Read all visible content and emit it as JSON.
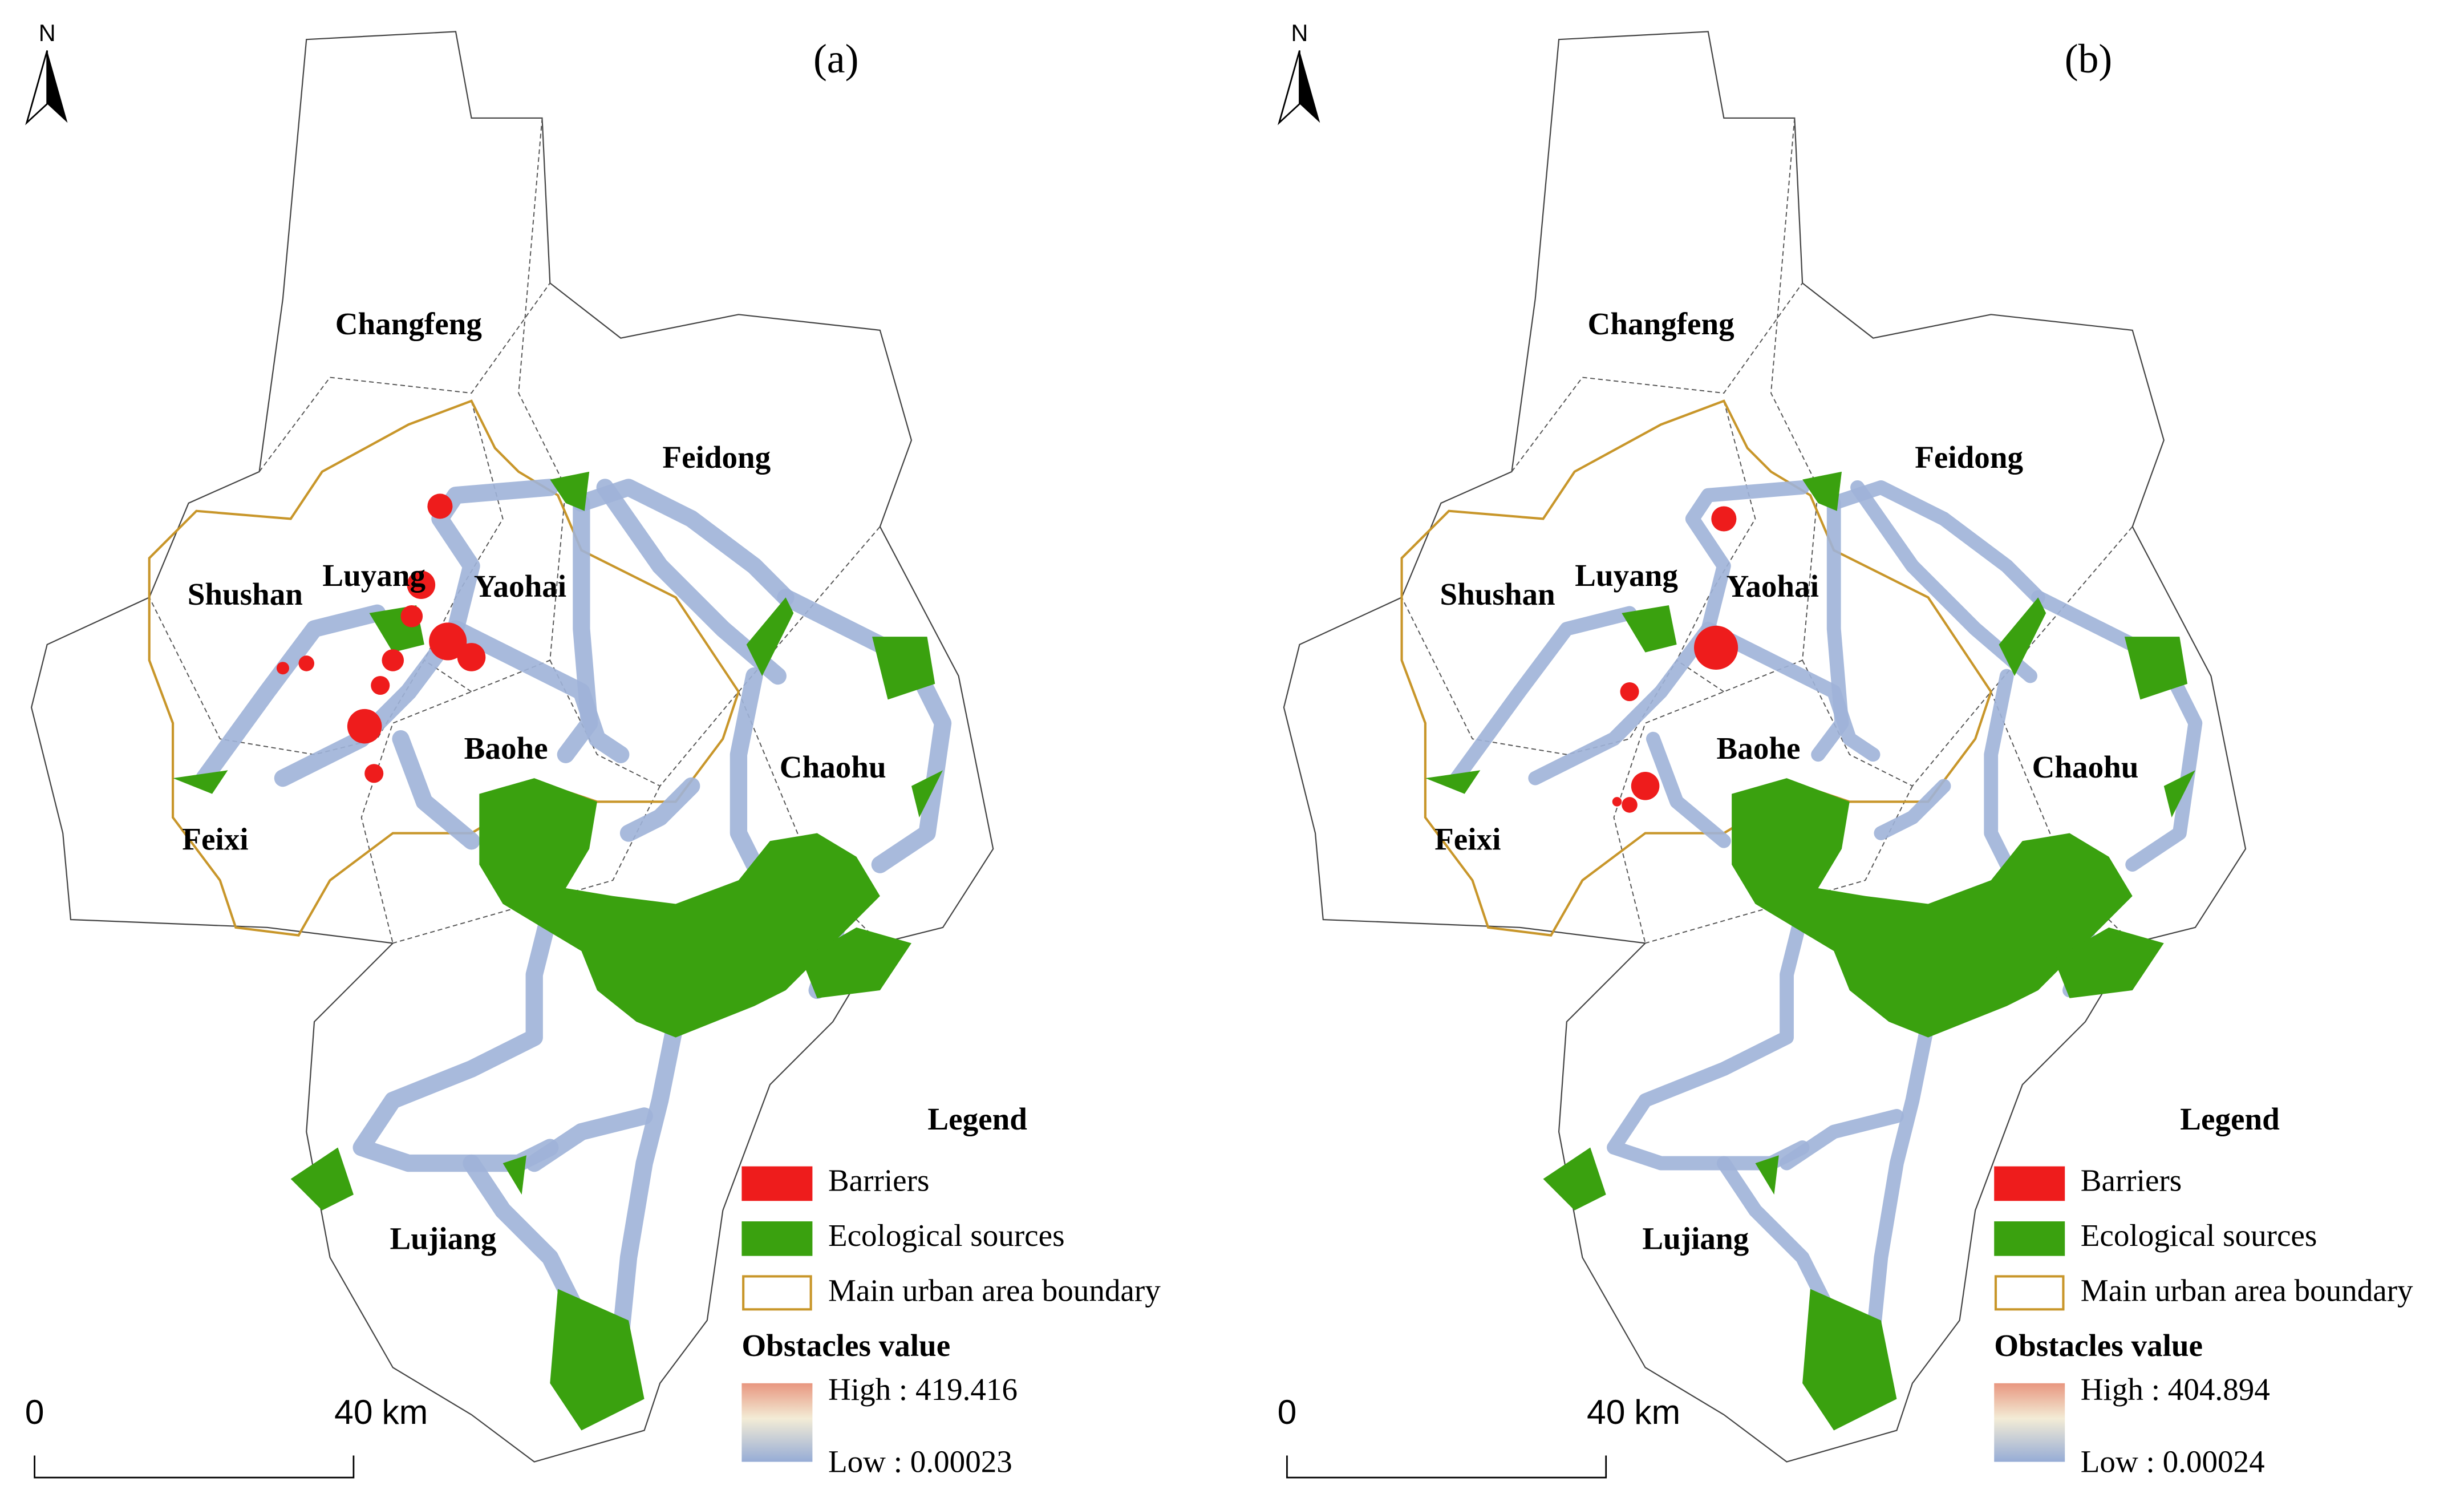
{
  "panels": [
    {
      "label": "(a)",
      "north": "N",
      "districts": [
        "Changfeng",
        "Feidong",
        "Shushan",
        "Luyang",
        "Yaohai",
        "Baohe",
        "Chaohu",
        "Feixi",
        "Lujiang"
      ],
      "legend": {
        "title": "Legend",
        "items": [
          "Barriers",
          "Ecological sources",
          "Main urban area boundary"
        ],
        "ramp_title": "Obstacles value",
        "high": "High : 419.416",
        "low": "Low : 0.00023"
      },
      "scale": {
        "start": "0",
        "end": "40",
        "unit": "km"
      }
    },
    {
      "label": "(b)",
      "north": "N",
      "districts": [
        "Changfeng",
        "Feidong",
        "Shushan",
        "Luyang",
        "Yaohai",
        "Baohe",
        "Chaohu",
        "Feixi",
        "Lujiang"
      ],
      "legend": {
        "title": "Legend",
        "items": [
          "Barriers",
          "Ecological sources",
          "Main urban area boundary"
        ],
        "ramp_title": "Obstacles value",
        "high": "High : 404.894",
        "low": "Low : 0.00024"
      },
      "scale": {
        "start": "0",
        "end": "40",
        "unit": "km"
      }
    }
  ]
}
